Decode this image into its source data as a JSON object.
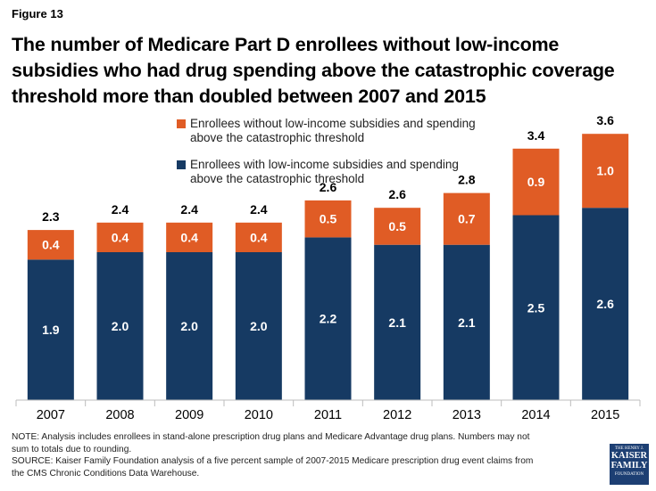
{
  "figure_label": "Figure 13",
  "title": "The number of Medicare Part D enrollees without low-income subsidies who had drug spending above the catastrophic coverage threshold more than doubled between 2007 and 2015",
  "colors": {
    "without_lis": "#e05c25",
    "with_lis": "#163a63"
  },
  "legend": [
    {
      "label": "Enrollees without low-income subsidies and spending above the catastrophic threshold",
      "color": "#e05c25"
    },
    {
      "label": "Enrollees with low-income subsidies and spending above the catastrophic threshold",
      "color": "#163a63"
    }
  ],
  "chart_data": {
    "type": "bar",
    "stacked": true,
    "categories": [
      "2007",
      "2008",
      "2009",
      "2010",
      "2011",
      "2012",
      "2013",
      "2014",
      "2015"
    ],
    "series": [
      {
        "name": "Enrollees with low-income subsidies and spending above the catastrophic threshold",
        "values": [
          1.9,
          2.0,
          2.0,
          2.0,
          2.2,
          2.1,
          2.1,
          2.5,
          2.6
        ]
      },
      {
        "name": "Enrollees without low-income subsidies and spending above the catastrophic threshold",
        "values": [
          0.4,
          0.4,
          0.4,
          0.4,
          0.5,
          0.5,
          0.7,
          0.9,
          1.0
        ]
      }
    ],
    "totals": [
      2.3,
      2.4,
      2.4,
      2.4,
      2.6,
      2.6,
      2.8,
      3.4,
      3.6
    ],
    "ylim": [
      0,
      4.0
    ],
    "grid": false,
    "legend_position": "top-right",
    "xlabel": "",
    "ylabel": ""
  },
  "note_lines": [
    "NOTE: Analysis includes enrollees in stand-alone prescription drug plans and Medicare Advantage drug plans. Numbers may not",
    "sum to totals due to rounding.",
    "SOURCE: Kaiser Family Foundation  analysis of a five percent sample of 2007-2015 Medicare prescription drug event claims from",
    "the CMS Chronic Conditions Data Warehouse."
  ],
  "logo": {
    "line1": "THE HENRY J.",
    "line2": "KAISER",
    "line3": "FAMILY",
    "line4": "FOUNDATION"
  }
}
